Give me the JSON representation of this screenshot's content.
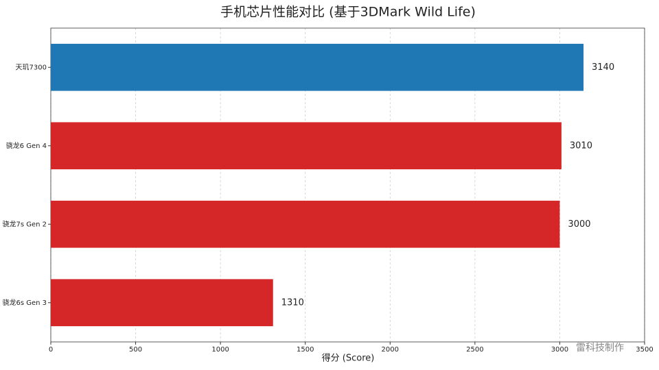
{
  "chart_data": {
    "type": "barh",
    "title": "手机芯片性能对比 (基于3DMark Wild Life)",
    "xlabel": "得分 (Score)",
    "categories": [
      "天玑7300",
      "骁龙6 Gen 4",
      "骁龙7s Gen 2",
      "骁龙6s Gen 3"
    ],
    "values": [
      3140,
      3010,
      3000,
      1310
    ],
    "colors": [
      "#1f77b4",
      "#d62728",
      "#d62728",
      "#d62728"
    ],
    "xlim": [
      0,
      3500
    ],
    "xticks": [
      0,
      500,
      1000,
      1500,
      2000,
      2500,
      3000,
      3500
    ],
    "grid": true,
    "watermark": "雷科技制作"
  }
}
